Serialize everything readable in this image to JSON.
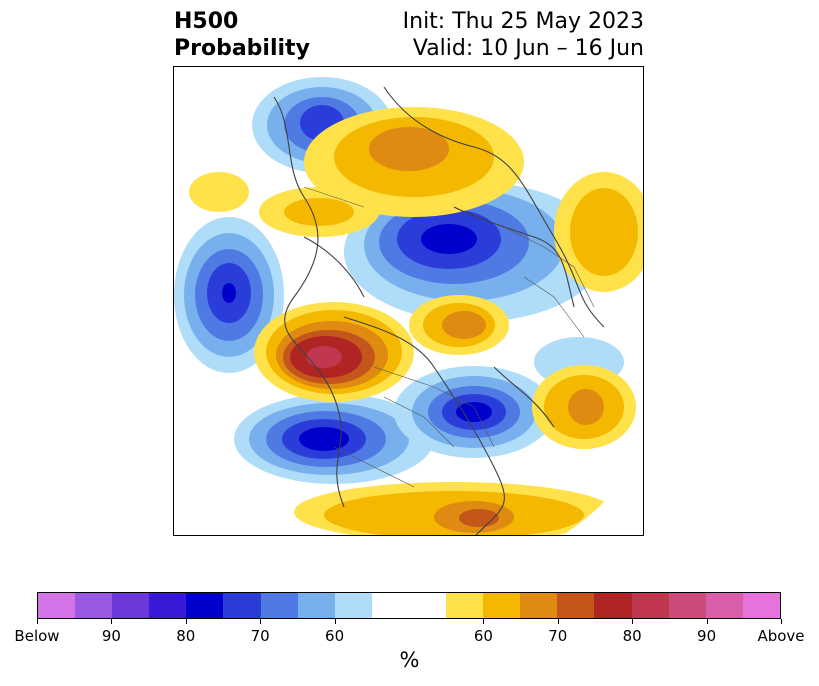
{
  "header": {
    "title_line1": "H500",
    "title_line2": "Probability",
    "init_text": "Init: Thu 25 May 2023",
    "valid_text": "Valid: 10 Jun – 16 Jun"
  },
  "map": {
    "projection": "north-polar-stereographic",
    "variable": "500 hPa height anomaly probability",
    "anomaly_centers": [
      {
        "category": "below",
        "region": "Alaska / Bering Sea",
        "peak_percent": 80
      },
      {
        "category": "below",
        "region": "North Pacific",
        "peak_percent": 85
      },
      {
        "category": "below",
        "region": "Siberia / Arctic",
        "peak_percent": 80
      },
      {
        "category": "below",
        "region": "Northwest Europe / Greenland",
        "peak_percent": 80
      },
      {
        "category": "below",
        "region": "Central Pacific",
        "peak_percent": 75
      },
      {
        "category": "above",
        "region": "Western Canada",
        "peak_percent": 80
      },
      {
        "category": "above",
        "region": "Northern Russia / Arctic Ocean",
        "peak_percent": 70
      },
      {
        "category": "above",
        "region": "Eastern Canada / Hudson Bay",
        "peak_percent": 70
      },
      {
        "category": "above",
        "region": "North Atlantic",
        "peak_percent": 70
      },
      {
        "category": "above",
        "region": "Eastern Asia / Japan",
        "peak_percent": 65
      },
      {
        "category": "above",
        "region": "North Africa / Mediterranean",
        "peak_percent": 75
      }
    ]
  },
  "colorbar": {
    "unit_label": "%",
    "colors": [
      "#d573e9",
      "#9a58e3",
      "#6b39db",
      "#3719d6",
      "#0000cd",
      "#2a3dd8",
      "#4f7ae4",
      "#78b0ee",
      "#aedcf9",
      "#ffffff",
      "#ffffff",
      "#ffe14a",
      "#f4b800",
      "#df8a10",
      "#c4561b",
      "#b02424",
      "#c0374f",
      "#cb4c7a",
      "#d85fa8",
      "#e673dc"
    ],
    "tick_labels": [
      "Below",
      "90",
      "80",
      "70",
      "60",
      "60",
      "70",
      "80",
      "90",
      "Above"
    ]
  }
}
